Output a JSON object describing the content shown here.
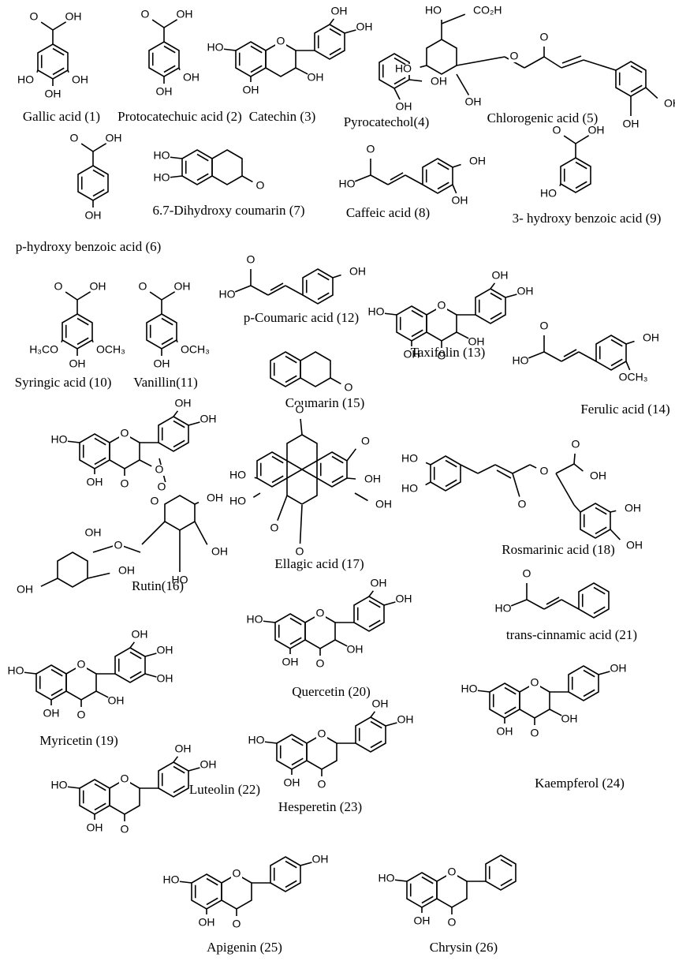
{
  "compounds": [
    {
      "name": "Gallic acid (1)",
      "atoms": [
        "O",
        "OH",
        "HO",
        "OH",
        "OH"
      ]
    },
    {
      "name": "Protocatechuic acid (2)",
      "atoms": [
        "O",
        "OH",
        "OH",
        "OH"
      ]
    },
    {
      "name": "Catechin (3)",
      "atoms": [
        "HO",
        "O",
        "OH",
        "OH",
        "OH",
        "OH"
      ]
    },
    {
      "name": "Pyrocatechol(4)",
      "atoms": [
        "OH",
        "OH"
      ]
    },
    {
      "name": "Chlorogenic acid (5)",
      "atoms": [
        "HO",
        "CO₂H",
        "HO",
        "OH",
        "O",
        "O",
        "OH",
        "OH"
      ]
    },
    {
      "name": "p-hydroxy benzoic acid (6)",
      "atoms": [
        "O",
        "OH",
        "OH"
      ]
    },
    {
      "name": "6.7-Dihydroxy coumarin (7)",
      "atoms": [
        "HO",
        "HO",
        "O"
      ]
    },
    {
      "name": "Caffeic acid (8)",
      "atoms": [
        "O",
        "HO",
        "OH",
        "OH"
      ]
    },
    {
      "name": "3- hydroxy benzoic acid (9)",
      "atoms": [
        "O",
        "OH",
        "HO"
      ]
    },
    {
      "name": "Syringic acid (10)",
      "atoms": [
        "O",
        "OH",
        "H₃CO",
        "OCH₃",
        "OH"
      ]
    },
    {
      "name": "Vanillin(11)",
      "atoms": [
        "O",
        "OH",
        "OCH₃",
        "OH"
      ]
    },
    {
      "name": "p-Coumaric acid (12)",
      "atoms": [
        "O",
        "HO",
        "OH"
      ]
    },
    {
      "name": "Taxifolin (13)",
      "atoms": [
        "HO",
        "O",
        "OH",
        "OH",
        "OH",
        "O",
        "OH"
      ]
    },
    {
      "name": "Ferulic acid (14)",
      "atoms": [
        "O",
        "HO",
        "OH",
        "OCH₃"
      ]
    },
    {
      "name": "Coumarin (15)",
      "atoms": [
        "O"
      ]
    },
    {
      "name": "Rutin(16)",
      "atoms": [
        "HO",
        "O",
        "OH",
        "OH",
        "OH",
        "O",
        "O",
        "O",
        "O",
        "O",
        "OH",
        "OH",
        "OH",
        "HO",
        "OH",
        "OH"
      ]
    },
    {
      "name": "Ellagic acid (17)",
      "atoms": [
        "O",
        "HO",
        "HO",
        "O",
        "OH",
        "O",
        "OH",
        "O"
      ]
    },
    {
      "name": "Rosmarinic acid (18)",
      "atoms": [
        "HO",
        "HO",
        "O",
        "O",
        "O",
        "OH",
        "OH",
        "OH"
      ]
    },
    {
      "name": "Myricetin (19)",
      "atoms": [
        "OH",
        "OH",
        "OH",
        "HO",
        "O",
        "OH",
        "OH",
        "O"
      ]
    },
    {
      "name": "Quercetin (20)",
      "atoms": [
        "OH",
        "OH",
        "HO",
        "O",
        "OH",
        "OH",
        "O"
      ]
    },
    {
      "name": "trans-cinnamic acid (21)",
      "atoms": [
        "O",
        "HO"
      ]
    },
    {
      "name": "Luteolin (22)",
      "atoms": [
        "OH",
        "OH",
        "HO",
        "O",
        "OH",
        "O"
      ]
    },
    {
      "name": "Hesperetin (23)",
      "atoms": [
        "OH",
        "OH",
        "HO",
        "O",
        "OH",
        "O"
      ]
    },
    {
      "name": "Kaempferol (24)",
      "atoms": [
        "OH",
        "HO",
        "O",
        "OH",
        "OH",
        "O"
      ]
    },
    {
      "name": "Apigenin (25)",
      "atoms": [
        "OH",
        "HO",
        "O",
        "OH",
        "O"
      ]
    },
    {
      "name": "Chrysin (26)",
      "atoms": [
        "HO",
        "O",
        "OH",
        "O"
      ]
    }
  ]
}
